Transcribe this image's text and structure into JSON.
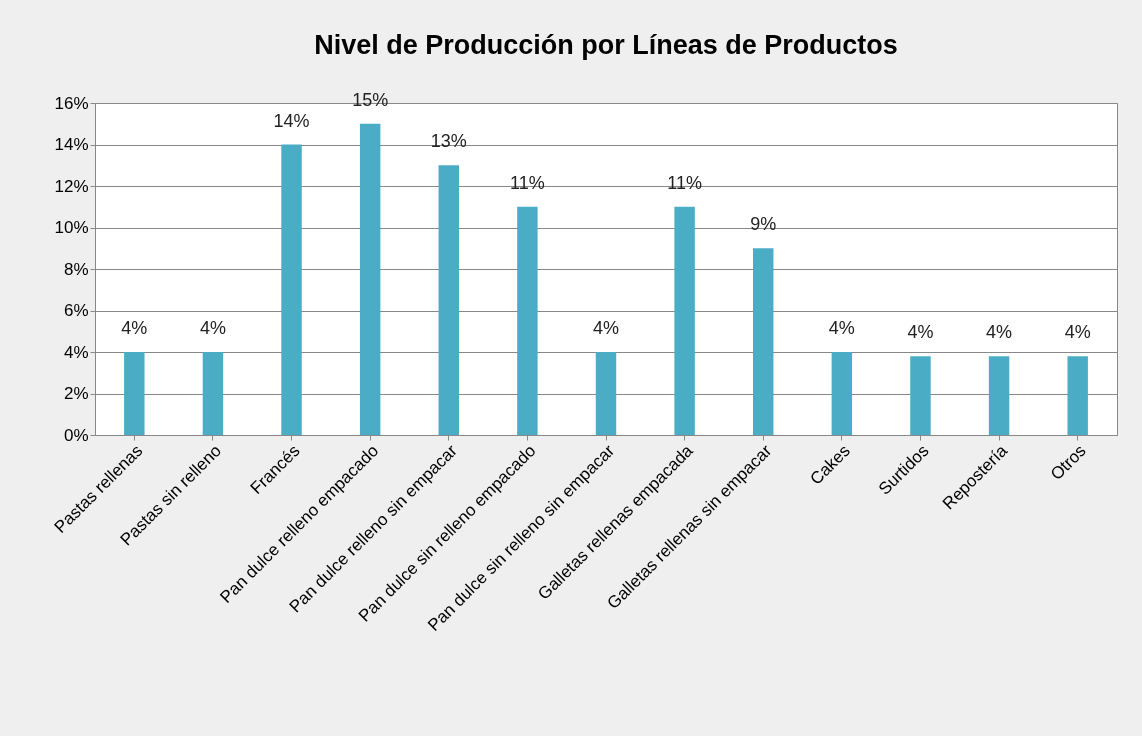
{
  "chart_data": {
    "type": "bar",
    "title": "Nivel de Producción  por Líneas de Productos",
    "categories": [
      "Pastas rellenas",
      "Pastas sin relleno",
      "Francés",
      "Pan dulce relleno empacado",
      "Pan dulce relleno sin empacar",
      "Pan dulce sin relleno empacado",
      "Pan dulce sin relleno sin empacar",
      "Galletas rellenas empacada",
      "Galletas rellenas sin empacar",
      "Cakes",
      "Surtidos",
      "Repostería",
      "Otros"
    ],
    "values": [
      4,
      4,
      14,
      15,
      13,
      11,
      4,
      11,
      9,
      4,
      3.8,
      3.8,
      3.8
    ],
    "value_labels": [
      "4%",
      "4%",
      "14%",
      "15%",
      "13%",
      "11%",
      "4%",
      "11%",
      "9%",
      "4%",
      "4%",
      "4%",
      "4%"
    ],
    "color": "#4bacc6",
    "ylim": [
      0,
      16
    ],
    "yticks": [
      {
        "value": 0,
        "label": "0%"
      },
      {
        "value": 2,
        "label": "2%"
      },
      {
        "value": 4,
        "label": "4%"
      },
      {
        "value": 6,
        "label": "6%"
      },
      {
        "value": 8,
        "label": "8%"
      },
      {
        "value": 10,
        "label": "10%"
      },
      {
        "value": 12,
        "label": "12%"
      },
      {
        "value": 14,
        "label": "14%"
      },
      {
        "value": 16,
        "label": "16%"
      }
    ],
    "grid": true
  }
}
